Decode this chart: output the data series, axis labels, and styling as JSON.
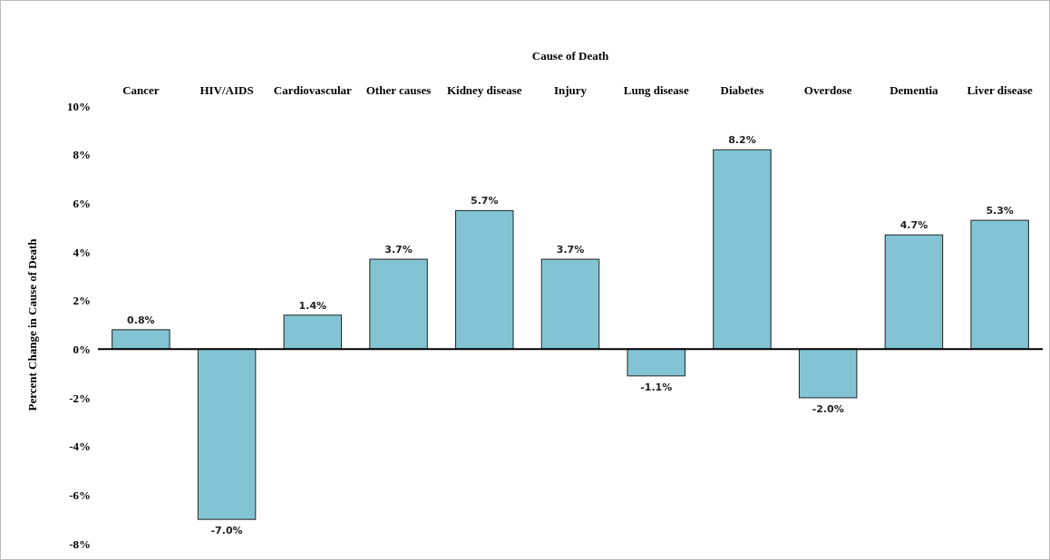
{
  "chart_data": {
    "type": "bar",
    "xlabel": "Cause of Death",
    "ylabel": "Percent Change in Cause of Death",
    "categories": [
      "Cancer",
      "HIV/AIDS",
      "Cardiovascular",
      "Other causes",
      "Kidney disease",
      "Injury",
      "Lung disease",
      "Diabetes",
      "Overdose",
      "Dementia",
      "Liver disease"
    ],
    "values": [
      0.8,
      -7.0,
      1.4,
      3.7,
      5.7,
      3.7,
      -1.1,
      8.2,
      -2.0,
      4.7,
      5.3
    ],
    "value_labels": [
      "0.8%",
      "-7.0%",
      "1.4%",
      "3.7%",
      "5.7%",
      "3.7%",
      "-1.1%",
      "8.2%",
      "-2.0%",
      "4.7%",
      "5.3%"
    ],
    "color": "#82c4d4",
    "ylim": [
      -8,
      10
    ],
    "yticks": [
      {
        "value": -8,
        "label": "-8%"
      },
      {
        "value": -6,
        "label": "-6%"
      },
      {
        "value": -4,
        "label": "-4%"
      },
      {
        "value": -2,
        "label": "-2%"
      },
      {
        "value": 0,
        "label": "0%"
      },
      {
        "value": 2,
        "label": "2%"
      },
      {
        "value": 4,
        "label": "4%"
      },
      {
        "value": 6,
        "label": "6%"
      },
      {
        "value": 8,
        "label": "8%"
      },
      {
        "value": 10,
        "label": "10%"
      }
    ]
  }
}
